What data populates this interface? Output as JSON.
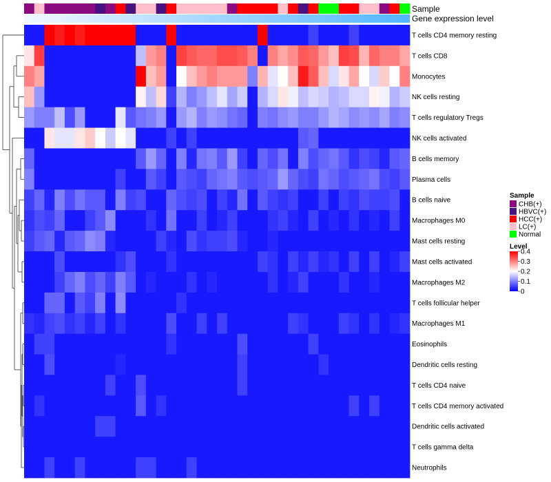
{
  "chart_data": {
    "type": "heatmap",
    "title": "",
    "top_annotation_labels": [
      "Sample",
      "Gene expression level"
    ],
    "row_labels": [
      "T cells CD4 memory resting",
      "T cells CD8",
      "Monocytes",
      "NK cells resting",
      "T cells regulatory  Tregs",
      "NK cells activated",
      "B cells memory",
      "Plasma cells",
      "B cells naive",
      "Macrophages M0",
      "Mast cells resting",
      "Mast cells activated",
      "Macrophages M2",
      "T cells follicular helper",
      "Macrophages M1",
      "Eosinophils",
      "Dendritic cells resting",
      "T cells CD4 naive",
      "T cells CD4 memory activated",
      "Dendritic cells activated",
      "T cells gamma delta",
      "Neutrophils"
    ],
    "sample_groups": [
      "CHB",
      "LC",
      "CHB",
      "CHB",
      "CHB",
      "CHB",
      "CHB",
      "HBVC",
      "CHB",
      "HCC",
      "HBVC",
      "LC",
      "LC",
      "HBVC",
      "HCC",
      "LC",
      "LC",
      "LC",
      "LC",
      "LC",
      "CHB",
      "HCC",
      "HCC",
      "HCC",
      "HCC",
      "LC",
      "HCC",
      "HBVC",
      "HCC",
      "Normal",
      "Normal",
      "HCC",
      "HCC",
      "LC",
      "LC",
      "CHB",
      "HCC",
      "Normal"
    ],
    "sample_legend": {
      "title": "Sample",
      "entries": [
        {
          "key": "CHB",
          "label": "CHB(+)",
          "color": "#8b0a7f"
        },
        {
          "key": "HBVC",
          "label": "HBVC(+)",
          "color": "#4a1280"
        },
        {
          "key": "HCC",
          "label": "HCC(+)",
          "color": "#ff0000"
        },
        {
          "key": "LC",
          "label": "LC(+)",
          "color": "#ffc0cb"
        },
        {
          "key": "Normal",
          "label": "Normal",
          "color": "#00ff00"
        }
      ]
    },
    "level_legend": {
      "title": "Level",
      "ticks": [
        0.4,
        0.3,
        0.2,
        0.1,
        0
      ],
      "tick_labels": [
        "0.4",
        "0.3",
        "0.2",
        "0.1",
        "0"
      ],
      "range": [
        0,
        0.4
      ]
    },
    "color_scale": {
      "low": "#0000ff",
      "mid": "#ffffff",
      "high": "#ff0000",
      "min": 0,
      "mid_value": 0.2,
      "max": 0.4
    },
    "values": [
      [
        0.02,
        0.02,
        0.4,
        0.38,
        0.4,
        0.38,
        0.4,
        0.4,
        0.4,
        0.4,
        0.4,
        0.02,
        0.02,
        0.02,
        0.4,
        0.02,
        0.02,
        0.02,
        0.02,
        0.02,
        0.02,
        0.02,
        0.02,
        0.4,
        0.02,
        0.02,
        0.02,
        0.02,
        0.05,
        0.02,
        0.02,
        0.02,
        0.05,
        0.02,
        0.02,
        0.02,
        0.02,
        0.02
      ],
      [
        0.22,
        0.35,
        0.02,
        0.02,
        0.02,
        0.02,
        0.02,
        0.02,
        0.02,
        0.02,
        0.02,
        0.15,
        0.28,
        0.3,
        0.02,
        0.35,
        0.33,
        0.32,
        0.32,
        0.34,
        0.34,
        0.33,
        0.3,
        0.02,
        0.3,
        0.27,
        0.29,
        0.33,
        0.32,
        0.28,
        0.25,
        0.35,
        0.34,
        0.26,
        0.32,
        0.3,
        0.3,
        0.27
      ],
      [
        0.3,
        0.27,
        0.02,
        0.02,
        0.02,
        0.02,
        0.02,
        0.02,
        0.02,
        0.02,
        0.02,
        0.4,
        0.25,
        0.28,
        0.02,
        0.2,
        0.25,
        0.28,
        0.3,
        0.28,
        0.28,
        0.28,
        0.1,
        0.26,
        0.18,
        0.2,
        0.25,
        0.38,
        0.33,
        0.25,
        0.17,
        0.22,
        0.27,
        0.2,
        0.17,
        0.24,
        0.2,
        0.3
      ],
      [
        0.25,
        0.12,
        0.02,
        0.02,
        0.02,
        0.02,
        0.02,
        0.02,
        0.02,
        0.02,
        0.02,
        0.21,
        0.15,
        0.23,
        0.05,
        0.14,
        0.1,
        0.12,
        0.15,
        0.18,
        0.13,
        0.16,
        0.02,
        0.14,
        0.17,
        0.22,
        0.19,
        0.15,
        0.17,
        0.16,
        0.14,
        0.15,
        0.17,
        0.17,
        0.21,
        0.19,
        0.14,
        0.16
      ],
      [
        0.12,
        0.1,
        0.1,
        0.15,
        0.06,
        0.12,
        0.02,
        0.02,
        0.02,
        0.18,
        0.07,
        0.09,
        0.1,
        0.12,
        0.02,
        0.12,
        0.14,
        0.1,
        0.12,
        0.11,
        0.09,
        0.08,
        0.02,
        0.1,
        0.09,
        0.11,
        0.12,
        0.1,
        0.1,
        0.12,
        0.14,
        0.13,
        0.11,
        0.12,
        0.11,
        0.13,
        0.1,
        0.11
      ],
      [
        0.02,
        0.02,
        0.22,
        0.18,
        0.18,
        0.22,
        0.24,
        0.2,
        0.16,
        0.2,
        0.18,
        0.02,
        0.02,
        0.02,
        0.05,
        0.02,
        0.05,
        0.02,
        0.02,
        0.02,
        0.02,
        0.02,
        0.02,
        0.02,
        0.02,
        0.02,
        0.02,
        0.07,
        0.08,
        0.02,
        0.02,
        0.02,
        0.02,
        0.02,
        0.02,
        0.02,
        0.02,
        0.02
      ],
      [
        0.08,
        0.02,
        0.02,
        0.02,
        0.02,
        0.02,
        0.02,
        0.02,
        0.02,
        0.02,
        0.02,
        0.07,
        0.12,
        0.08,
        0.02,
        0.1,
        0.03,
        0.09,
        0.1,
        0.07,
        0.12,
        0.05,
        0.02,
        0.08,
        0.06,
        0.09,
        0.02,
        0.1,
        0.06,
        0.08,
        0.09,
        0.07,
        0.04,
        0.06,
        0.05,
        0.03,
        0.07,
        0.08
      ],
      [
        0.1,
        0.02,
        0.02,
        0.02,
        0.02,
        0.02,
        0.02,
        0.02,
        0.02,
        0.05,
        0.02,
        0.02,
        0.07,
        0.05,
        0.02,
        0.07,
        0.06,
        0.05,
        0.08,
        0.09,
        0.1,
        0.07,
        0.06,
        0.07,
        0.08,
        0.12,
        0.08,
        0.06,
        0.05,
        0.09,
        0.08,
        0.06,
        0.07,
        0.08,
        0.09,
        0.06,
        0.05,
        0.07
      ],
      [
        0.05,
        0.08,
        0.03,
        0.1,
        0.06,
        0.09,
        0.07,
        0.07,
        0.02,
        0.1,
        0.05,
        0.06,
        0.02,
        0.02,
        0.08,
        0.06,
        0.05,
        0.06,
        0.02,
        0.05,
        0.03,
        0.09,
        0.02,
        0.07,
        0.05,
        0.04,
        0.05,
        0.02,
        0.02,
        0.05,
        0.02,
        0.05,
        0.04,
        0.06,
        0.05,
        0.05,
        0.06,
        0.02
      ],
      [
        0.04,
        0.06,
        0.05,
        0.08,
        0.02,
        0.02,
        0.05,
        0.07,
        0.11,
        0.02,
        0.02,
        0.02,
        0.04,
        0.02,
        0.09,
        0.02,
        0.02,
        0.05,
        0.02,
        0.03,
        0.05,
        0.02,
        0.02,
        0.02,
        0.04,
        0.05,
        0.03,
        0.02,
        0.05,
        0.02,
        0.03,
        0.02,
        0.04,
        0.02,
        0.03,
        0.02,
        0.05,
        0.02
      ],
      [
        0.05,
        0.07,
        0.08,
        0.03,
        0.07,
        0.08,
        0.11,
        0.1,
        0.03,
        0.02,
        0.02,
        0.02,
        0.02,
        0.05,
        0.03,
        0.02,
        0.06,
        0.04,
        0.05,
        0.05,
        0.06,
        0.03,
        0.02,
        0.02,
        0.03,
        0.02,
        0.02,
        0.02,
        0.02,
        0.02,
        0.02,
        0.02,
        0.02,
        0.02,
        0.02,
        0.02,
        0.02,
        0.02
      ],
      [
        0.02,
        0.02,
        0.02,
        0.06,
        0.02,
        0.02,
        0.02,
        0.02,
        0.02,
        0.04,
        0.06,
        0.02,
        0.02,
        0.02,
        0.04,
        0.02,
        0.02,
        0.02,
        0.02,
        0.02,
        0.02,
        0.02,
        0.02,
        0.05,
        0.04,
        0.02,
        0.05,
        0.03,
        0.05,
        0.03,
        0.04,
        0.02,
        0.05,
        0.02,
        0.05,
        0.02,
        0.03,
        0.05
      ],
      [
        0.02,
        0.02,
        0.02,
        0.05,
        0.08,
        0.1,
        0.06,
        0.08,
        0.05,
        0.1,
        0.07,
        0.02,
        0.03,
        0.02,
        0.02,
        0.02,
        0.04,
        0.02,
        0.03,
        0.02,
        0.02,
        0.02,
        0.02,
        0.02,
        0.04,
        0.02,
        0.03,
        0.05,
        0.02,
        0.02,
        0.02,
        0.04,
        0.02,
        0.02,
        0.03,
        0.02,
        0.02,
        0.02
      ],
      [
        0.02,
        0.02,
        0.08,
        0.08,
        0.02,
        0.07,
        0.05,
        0.1,
        0.02,
        0.11,
        0.02,
        0.02,
        0.02,
        0.02,
        0.02,
        0.04,
        0.02,
        0.02,
        0.02,
        0.02,
        0.02,
        0.02,
        0.02,
        0.02,
        0.02,
        0.02,
        0.02,
        0.02,
        0.02,
        0.02,
        0.02,
        0.02,
        0.02,
        0.02,
        0.02,
        0.02,
        0.02,
        0.02
      ],
      [
        0.04,
        0.03,
        0.05,
        0.06,
        0.04,
        0.05,
        0.03,
        0.05,
        0.02,
        0.04,
        0.02,
        0.02,
        0.02,
        0.02,
        0.06,
        0.02,
        0.02,
        0.05,
        0.02,
        0.05,
        0.02,
        0.02,
        0.02,
        0.02,
        0.02,
        0.02,
        0.05,
        0.04,
        0.02,
        0.02,
        0.02,
        0.05,
        0.04,
        0.02,
        0.04,
        0.02,
        0.03,
        0.04
      ],
      [
        0.02,
        0.05,
        0.05,
        0.02,
        0.02,
        0.02,
        0.02,
        0.02,
        0.02,
        0.02,
        0.02,
        0.02,
        0.02,
        0.02,
        0.04,
        0.02,
        0.02,
        0.02,
        0.02,
        0.02,
        0.02,
        0.06,
        0.02,
        0.02,
        0.02,
        0.02,
        0.02,
        0.02,
        0.05,
        0.02,
        0.02,
        0.02,
        0.02,
        0.02,
        0.02,
        0.02,
        0.02,
        0.02
      ],
      [
        0.02,
        0.02,
        0.06,
        0.02,
        0.02,
        0.02,
        0.02,
        0.02,
        0.02,
        0.03,
        0.02,
        0.02,
        0.02,
        0.02,
        0.02,
        0.02,
        0.02,
        0.02,
        0.02,
        0.02,
        0.02,
        0.05,
        0.02,
        0.02,
        0.02,
        0.02,
        0.02,
        0.02,
        0.02,
        0.04,
        0.02,
        0.02,
        0.02,
        0.02,
        0.02,
        0.02,
        0.02,
        0.02
      ],
      [
        0.02,
        0.02,
        0.02,
        0.02,
        0.02,
        0.02,
        0.02,
        0.02,
        0.05,
        0.02,
        0.02,
        0.06,
        0.02,
        0.02,
        0.02,
        0.02,
        0.02,
        0.02,
        0.02,
        0.02,
        0.02,
        0.05,
        0.02,
        0.02,
        0.02,
        0.02,
        0.02,
        0.02,
        0.02,
        0.02,
        0.02,
        0.02,
        0.02,
        0.02,
        0.02,
        0.02,
        0.02,
        0.02
      ],
      [
        0.02,
        0.04,
        0.02,
        0.02,
        0.02,
        0.02,
        0.02,
        0.02,
        0.02,
        0.02,
        0.02,
        0.07,
        0.02,
        0.04,
        0.02,
        0.02,
        0.02,
        0.02,
        0.02,
        0.02,
        0.02,
        0.02,
        0.02,
        0.02,
        0.02,
        0.02,
        0.02,
        0.02,
        0.02,
        0.02,
        0.02,
        0.02,
        0.05,
        0.02,
        0.05,
        0.02,
        0.02,
        0.02
      ],
      [
        0.02,
        0.02,
        0.02,
        0.02,
        0.02,
        0.02,
        0.02,
        0.05,
        0.05,
        0.02,
        0.02,
        0.02,
        0.02,
        0.02,
        0.02,
        0.02,
        0.02,
        0.02,
        0.02,
        0.02,
        0.02,
        0.02,
        0.02,
        0.02,
        0.02,
        0.02,
        0.02,
        0.02,
        0.02,
        0.02,
        0.02,
        0.02,
        0.02,
        0.02,
        0.02,
        0.02,
        0.02,
        0.02
      ],
      [
        0.02,
        0.02,
        0.02,
        0.02,
        0.02,
        0.02,
        0.02,
        0.02,
        0.02,
        0.02,
        0.02,
        0.02,
        0.02,
        0.02,
        0.02,
        0.02,
        0.02,
        0.02,
        0.02,
        0.02,
        0.02,
        0.02,
        0.02,
        0.02,
        0.02,
        0.02,
        0.02,
        0.02,
        0.02,
        0.02,
        0.02,
        0.02,
        0.02,
        0.02,
        0.02,
        0.02,
        0.02,
        0.02
      ],
      [
        0.02,
        0.02,
        0.05,
        0.02,
        0.02,
        0.05,
        0.02,
        0.02,
        0.02,
        0.02,
        0.02,
        0.05,
        0.05,
        0.02,
        0.02,
        0.02,
        0.05,
        0.02,
        0.02,
        0.02,
        0.02,
        0.02,
        0.02,
        0.02,
        0.02,
        0.02,
        0.02,
        0.02,
        0.02,
        0.02,
        0.02,
        0.02,
        0.02,
        0.02,
        0.02,
        0.02,
        0.02,
        0.02
      ]
    ]
  }
}
